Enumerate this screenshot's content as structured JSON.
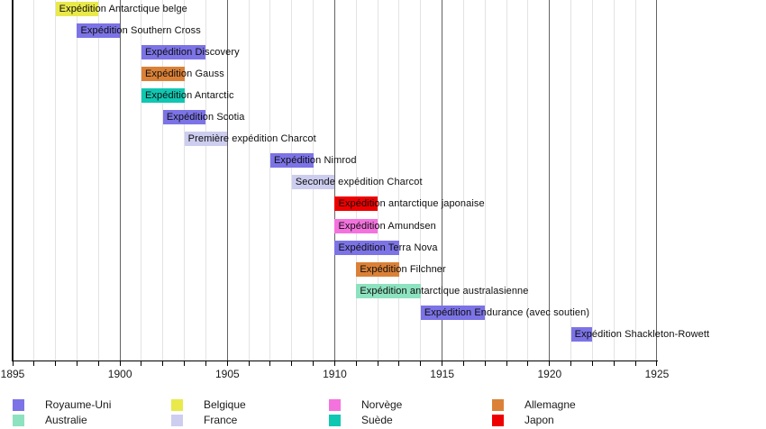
{
  "chart_data": {
    "type": "gantt-timeline",
    "title": "",
    "xlabel": "",
    "ylabel": "",
    "x_axis": {
      "min": 1895,
      "max": 1925,
      "minor_tick_interval": 1,
      "major_tick_interval": 5,
      "major_ticks": [
        1895,
        1900,
        1905,
        1910,
        1915,
        1920,
        1925
      ]
    },
    "grid": "vertical-yearly",
    "legend_position": "bottom",
    "colors": {
      "royaume_uni": "#7C73E6",
      "australie": "#8DE2BF",
      "belgique": "#E9E94B",
      "france": "#CDCDEF",
      "norvege": "#F472DE",
      "suede": "#10C7B2",
      "allemagne": "#DA8137",
      "japon": "#EE0000"
    },
    "bars": [
      {
        "label": "Expédition Antarctique belge",
        "start": 1897,
        "end": 1899,
        "country": "belgique"
      },
      {
        "label": "Expédition Southern Cross",
        "start": 1898,
        "end": 1900,
        "country": "royaume_uni"
      },
      {
        "label": "Expédition Discovery",
        "start": 1901,
        "end": 1904,
        "country": "royaume_uni"
      },
      {
        "label": "Expédition Gauss",
        "start": 1901,
        "end": 1903,
        "country": "allemagne"
      },
      {
        "label": "Expédition Antarctic",
        "start": 1901,
        "end": 1903,
        "country": "suede"
      },
      {
        "label": "Expédition Scotia",
        "start": 1902,
        "end": 1904,
        "country": "royaume_uni"
      },
      {
        "label": "Première expédition Charcot",
        "start": 1903,
        "end": 1905,
        "country": "france"
      },
      {
        "label": "Expédition Nimrod",
        "start": 1907,
        "end": 1909,
        "country": "royaume_uni"
      },
      {
        "label": "Seconde expédition Charcot",
        "start": 1908,
        "end": 1910,
        "country": "france"
      },
      {
        "label": "Expédition antarctique japonaise",
        "start": 1910,
        "end": 1912,
        "country": "japon"
      },
      {
        "label": "Expédition Amundsen",
        "start": 1910,
        "end": 1912,
        "country": "norvege"
      },
      {
        "label": "Expédition Terra Nova",
        "start": 1910,
        "end": 1913,
        "country": "royaume_uni"
      },
      {
        "label": "Expédition Filchner",
        "start": 1911,
        "end": 1913,
        "country": "allemagne"
      },
      {
        "label": "Expédition antarctique australasienne",
        "start": 1911,
        "end": 1914,
        "country": "australie"
      },
      {
        "label": "Expédition Endurance (avec soutien)",
        "start": 1914,
        "end": 1917,
        "country": "royaume_uni"
      },
      {
        "label": "Expédition Shackleton-Rowett",
        "start": 1921,
        "end": 1922,
        "country": "royaume_uni"
      }
    ],
    "legend": [
      {
        "label": "Royaume-Uni",
        "country": "royaume_uni"
      },
      {
        "label": "Australie",
        "country": "australie"
      },
      {
        "label": "Belgique",
        "country": "belgique"
      },
      {
        "label": "France",
        "country": "france"
      },
      {
        "label": "Norvège",
        "country": "norvege"
      },
      {
        "label": "Suède",
        "country": "suede"
      },
      {
        "label": "Allemagne",
        "country": "allemagne"
      },
      {
        "label": "Japon",
        "country": "japon"
      }
    ]
  }
}
